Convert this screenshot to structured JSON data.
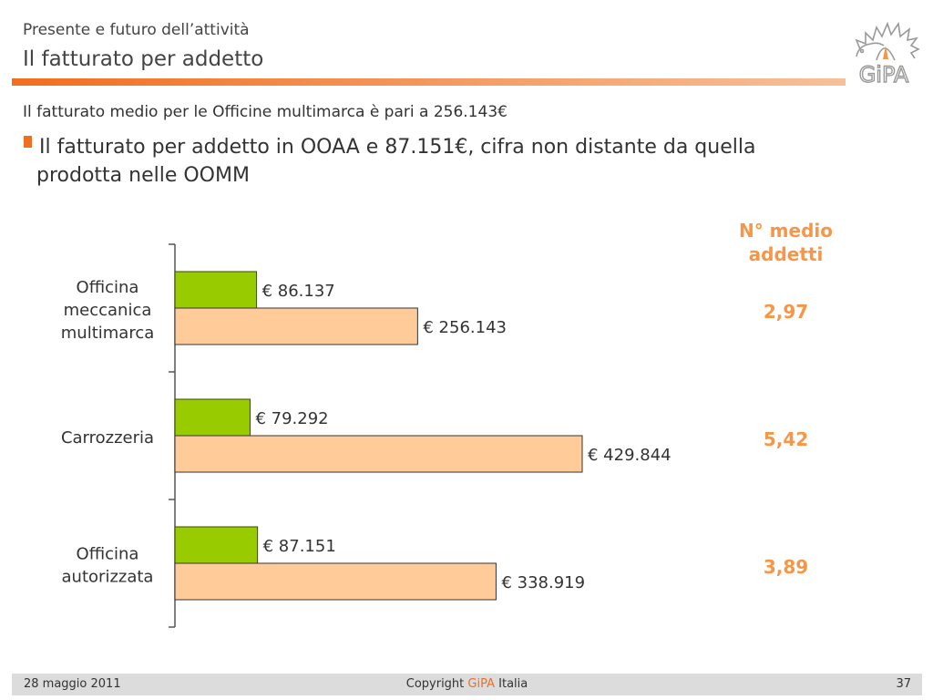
{
  "header": {
    "supertitle": "Presente e futuro dell’attività",
    "title": "Il fatturato per addetto",
    "logo_text": "GiPA"
  },
  "body": {
    "subtitle": "Il fatturato medio per le Officine multimarca è pari a 256.143€",
    "bullet_line1": "Il fatturato per addetto in OOAA e 87.151€, cifra non distante da quella",
    "bullet_line2": "prodotta nelle OOMM"
  },
  "side_panel": {
    "header_line1": "N° medio",
    "header_line2": "addetti",
    "values": [
      "2,97",
      "5,42",
      "3,89"
    ]
  },
  "colors": {
    "accent": "#f26d1f",
    "green_bar": "#99cc00",
    "peach_bar": "#ffcc99",
    "side_text": "#f79646"
  },
  "chart_data": {
    "type": "bar",
    "orientation": "horizontal",
    "categories": [
      [
        "Officina",
        "meccanica",
        "multimarca"
      ],
      [
        "Carrozzeria"
      ],
      [
        "Officina",
        "autorizzata"
      ]
    ],
    "series": [
      {
        "name": "Fatturato per addetto",
        "values": [
          86137,
          79292,
          87151
        ],
        "labels": [
          "€ 86.137",
          "€ 79.292",
          "€ 87.151"
        ],
        "color": "#99cc00"
      },
      {
        "name": "Fatturato medio",
        "values": [
          256143,
          429844,
          338919
        ],
        "labels": [
          "€ 256.143",
          "€ 429.844",
          "€ 338.919"
        ],
        "color": "#ffcc99"
      }
    ],
    "xlim": [
      0,
      429844
    ],
    "grid": false,
    "legend": "none"
  },
  "footer": {
    "date": "28 maggio 2011",
    "copyright_prefix": "Copyright ",
    "brand": "GiPA",
    "copyright_suffix": " Italia",
    "page": "37"
  }
}
